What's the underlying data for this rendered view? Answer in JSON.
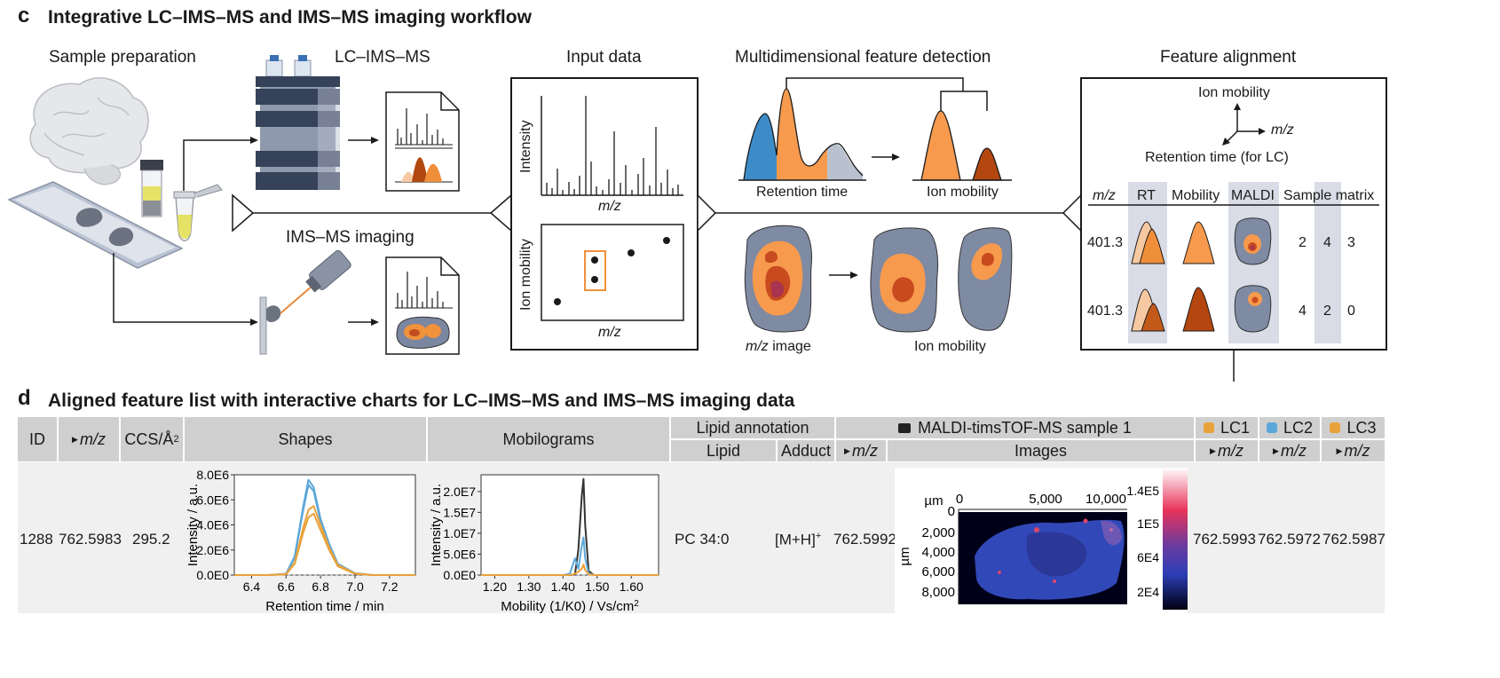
{
  "panel_c": {
    "letter": "c",
    "title": "Integrative LC–IMS–MS and IMS–MS imaging workflow",
    "sample_prep": "Sample preparation",
    "lcimsms": "LC–IMS–MS",
    "imsms_imaging": "IMS–MS imaging",
    "input_data": {
      "title": "Input data",
      "intensity": "Intensity",
      "mz": "m/z",
      "ion_mobility": "Ion mobility",
      "mz2": "m/z"
    },
    "feature_detection": {
      "title": "Multidimensional feature detection",
      "retention_time": "Retention time",
      "ion_mobility": "Ion mobility",
      "mz_image_mz": "m/z",
      "mz_image_rest": " image",
      "ion_mobility2": "Ion mobility"
    },
    "feature_alignment": {
      "title": "Feature alignment",
      "axis_ion_mobility": "Ion mobility",
      "axis_mz": "m/z",
      "axis_rt": "Retention time (for LC)",
      "col_mz": "m/z",
      "col_rt": "RT",
      "col_mobility": "Mobility",
      "col_maldi": "MALDI",
      "col_sample_matrix": "Sample matrix",
      "rows": [
        {
          "mz": "401.3",
          "matrix": [
            "2",
            "4",
            "3"
          ]
        },
        {
          "mz": "401.3",
          "matrix": [
            "4",
            "2",
            "0"
          ]
        }
      ]
    }
  },
  "panel_d": {
    "letter": "d",
    "title": "Aligned feature list with interactive charts for LC–IMS–MS and IMS–MS imaging data",
    "headers": {
      "id": "ID",
      "mz": "m/z",
      "ccs": "CCS/Å",
      "ccs_sup": "2",
      "shapes": "Shapes",
      "mobilograms": "Mobilograms",
      "lipid_annotation": "Lipid annotation",
      "lipid": "Lipid",
      "adduct": "Adduct",
      "maldi_sample": "MALDI-timsTOF-MS sample 1",
      "maldi_mz": "m/z",
      "images": "Images",
      "lc1": "LC1",
      "lc2": "LC2",
      "lc3": "LC3",
      "lc1_mz": "m/z",
      "lc2_mz": "m/z",
      "lc3_mz": "m/z"
    },
    "row": {
      "id": "1288",
      "mz": "762.5983",
      "ccs": "295.2",
      "lipid": "PC 34:0",
      "adduct": "[M+H]",
      "adduct_sup": "+",
      "maldi_mz": "762.5992",
      "lc1_mz": "762.5993",
      "lc2_mz": "762.5972",
      "lc3_mz": "762.5987"
    },
    "shapes_chart": {
      "xlabel": "Retention time / min",
      "ylabel": "Intensity / a.u.",
      "xticks": [
        "6.4",
        "6.6",
        "6.8",
        "7.0",
        "7.2"
      ],
      "yticks": [
        "0.0E0",
        "2.0E6",
        "4.0E6",
        "6.0E6",
        "8.0E6"
      ]
    },
    "mobilogram_chart": {
      "xlabel": "Mobility (1/K0) / Vs/cm",
      "xlabel_sup": "2",
      "ylabel": "Intensity / a.u.",
      "xticks": [
        "1.20",
        "1.30",
        "1.40",
        "1.50",
        "1.60"
      ],
      "yticks": [
        "0.0E0",
        "5.0E6",
        "1.0E7",
        "1.5E7",
        "2.0E7"
      ]
    },
    "image_chart": {
      "top_unit": "µm",
      "left_unit": "µm",
      "xticks": [
        "0",
        "5,000",
        "10,000"
      ],
      "yticks": [
        "0",
        "2,000",
        "4,000",
        "6,000",
        "8,000"
      ],
      "colorbar": [
        "1.4E5",
        "1E5",
        "6E4",
        "2E4"
      ]
    }
  },
  "chart_data": [
    {
      "type": "line",
      "name": "Shapes",
      "xlabel": "Retention time / min",
      "ylabel": "Intensity / a.u.",
      "xlim": [
        6.3,
        7.35
      ],
      "ylim": [
        0,
        8000000
      ],
      "x": [
        6.3,
        6.5,
        6.6,
        6.65,
        6.7,
        6.73,
        6.76,
        6.8,
        6.85,
        6.9,
        7.0,
        7.1,
        7.35
      ],
      "series": [
        {
          "color": "#5ba7d9",
          "values": [
            0,
            0,
            100000,
            1500000,
            5500000,
            7600000,
            7000000,
            4500000,
            2500000,
            900000,
            150000,
            0,
            0
          ]
        },
        {
          "color": "#5ba7d9",
          "values": [
            0,
            0,
            100000,
            1400000,
            5200000,
            7200000,
            6700000,
            4300000,
            2300000,
            800000,
            120000,
            0,
            0
          ]
        },
        {
          "color": "#e9a23b",
          "values": [
            0,
            0,
            80000,
            1000000,
            3800000,
            5200000,
            5500000,
            4000000,
            2200000,
            800000,
            120000,
            0,
            0
          ]
        },
        {
          "color": "#e9a23b",
          "values": [
            0,
            0,
            60000,
            900000,
            3400000,
            4600000,
            4900000,
            3600000,
            2000000,
            700000,
            100000,
            0,
            0
          ]
        }
      ]
    },
    {
      "type": "line",
      "name": "Mobilograms",
      "xlabel": "Mobility (1/K0) / Vs/cm2",
      "ylabel": "Intensity / a.u.",
      "xlim": [
        1.16,
        1.68
      ],
      "ylim": [
        0,
        24000000
      ],
      "x": [
        1.16,
        1.4,
        1.42,
        1.435,
        1.445,
        1.455,
        1.46,
        1.465,
        1.475,
        1.49,
        1.68
      ],
      "series": [
        {
          "color": "#333333",
          "values": [
            0,
            0,
            0,
            200000,
            6000000,
            19000000,
            23000000,
            12000000,
            1000000,
            0,
            0
          ]
        },
        {
          "color": "#5ba7d9",
          "values": [
            0,
            0,
            300000,
            4000000,
            1500000,
            7000000,
            9000000,
            4000000,
            400000,
            0,
            0
          ]
        },
        {
          "color": "#e9a23b",
          "values": [
            0,
            0,
            0,
            300000,
            800000,
            1500000,
            2500000,
            1200000,
            200000,
            0,
            0
          ]
        }
      ]
    }
  ]
}
